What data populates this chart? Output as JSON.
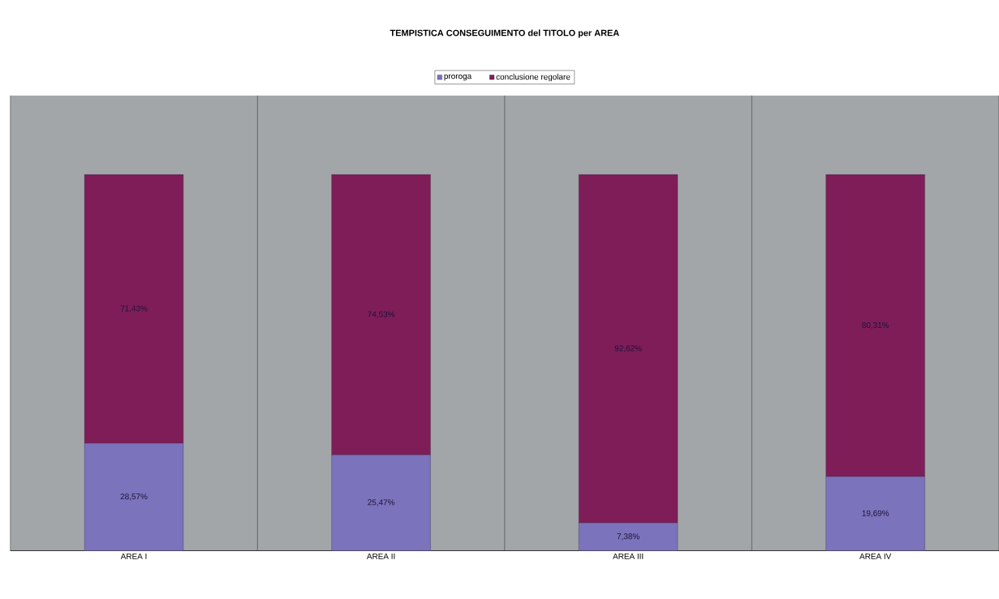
{
  "chart_data": {
    "type": "bar",
    "title": "TEMPISTICA CONSEGUIMENTO del TITOLO per AREA",
    "categories": [
      "AREA I",
      "AREA II",
      "AREA III",
      "AREA IV"
    ],
    "stacked": true,
    "series": [
      {
        "name": "proroga",
        "color": "#7b73bb",
        "values": [
          28.57,
          25.47,
          7.38,
          19.69
        ],
        "value_labels": [
          "28,57%",
          "25,47%",
          "7,38%",
          "19,69%"
        ]
      },
      {
        "name": "conclusione regolare",
        "color": "#7f1d58",
        "values": [
          71.43,
          74.53,
          92.62,
          80.31
        ],
        "value_labels": [
          "71,43%",
          "74,53%",
          "92,62%",
          "80,31%"
        ]
      }
    ],
    "ylim": [
      0,
      121
    ],
    "tick_labels": "x",
    "grid": "x",
    "legend": "top"
  }
}
